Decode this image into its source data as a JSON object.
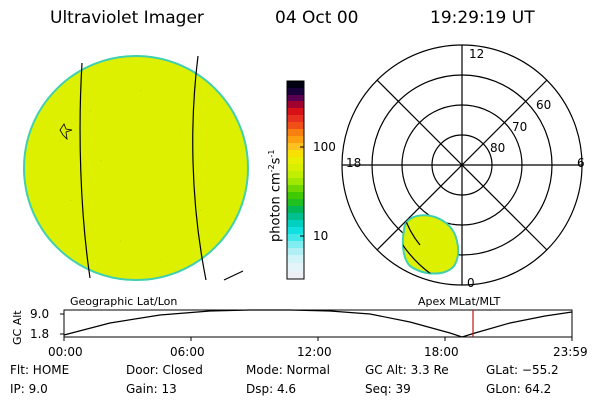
{
  "header": {
    "title": "Ultraviolet Imager",
    "date": "04 Oct 00",
    "time": "19:29:19 UT"
  },
  "colorbar": {
    "units_label": "photon cm",
    "units_sup1": "-2",
    "units_mid": "s",
    "units_sup2": "-1",
    "ticks": [
      "100",
      "10"
    ]
  },
  "polar_plot": {
    "mlt_labels": [
      "12",
      "18",
      "6",
      "0"
    ],
    "lat_labels": [
      "60",
      "70",
      "80"
    ]
  },
  "altitude_panel": {
    "left_title": "Geographic Lat/Lon",
    "right_title": "Apex MLat/MLT",
    "axis_label": "GC Alt",
    "y_ticks": [
      "9.0",
      "1.8"
    ],
    "x_ticks": [
      "00:00",
      "06:00",
      "12:00",
      "18:00",
      "23:59"
    ]
  },
  "status": {
    "flt": "Flt: HOME",
    "ip": "IP:  9.0",
    "door": "Door: Closed",
    "gain": "Gain: 13",
    "mode": "Mode: Normal",
    "dsp": "Dsp:    4.6",
    "gcalt": "GC Alt: 3.3 Re",
    "seq": "Seq: 39",
    "glat": "GLat: −55.2",
    "glon": "GLon:  64.2"
  },
  "colors": {
    "image_fill": "#dcf000",
    "limb": "#40d0b0",
    "marker": "#c01818"
  }
}
